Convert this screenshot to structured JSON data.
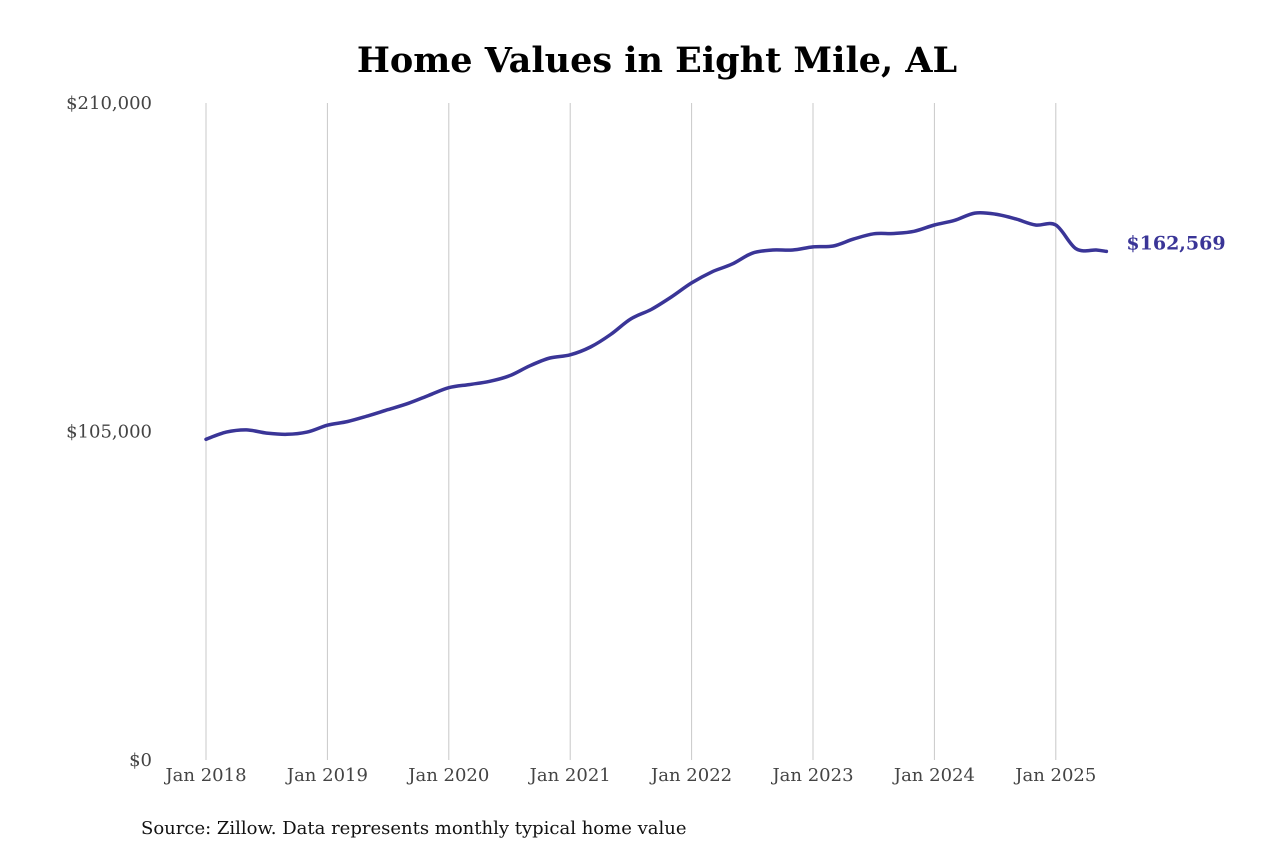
{
  "chart_data": {
    "type": "line",
    "title": "Home Values in Eight Mile, AL",
    "xlabel": "",
    "ylabel": "",
    "ylim": [
      0,
      210000
    ],
    "yticks": [
      {
        "value": 0,
        "label": "$0"
      },
      {
        "value": 105000,
        "label": "$105,000"
      },
      {
        "value": 210000,
        "label": "$210,000"
      }
    ],
    "xticks": [
      {
        "value": 2018.0,
        "label": "Jan 2018"
      },
      {
        "value": 2019.0,
        "label": "Jan 2019"
      },
      {
        "value": 2020.0,
        "label": "Jan 2020"
      },
      {
        "value": 2021.0,
        "label": "Jan 2021"
      },
      {
        "value": 2022.0,
        "label": "Jan 2022"
      },
      {
        "value": 2023.0,
        "label": "Jan 2023"
      },
      {
        "value": 2024.0,
        "label": "Jan 2024"
      },
      {
        "value": 2025.0,
        "label": "Jan 2025"
      }
    ],
    "xlim": [
      2018.0,
      2025.417
    ],
    "grid": "vertical",
    "line_color": "#3a3597",
    "end_label": "$162,569",
    "source": "Source: Zillow. Data represents monthly typical home value",
    "series": [
      {
        "x": [
          2018.0,
          2018.167,
          2018.333,
          2018.5,
          2018.667,
          2018.833,
          2019.0,
          2019.167,
          2019.333,
          2019.5,
          2019.667,
          2019.833,
          2020.0,
          2020.167,
          2020.333,
          2020.5,
          2020.667,
          2020.833,
          2021.0,
          2021.167,
          2021.333,
          2021.5,
          2021.667,
          2021.833,
          2022.0,
          2022.167,
          2022.333,
          2022.5,
          2022.667,
          2022.833,
          2023.0,
          2023.167,
          2023.333,
          2023.5,
          2023.667,
          2023.833,
          2024.0,
          2024.167,
          2024.333,
          2024.5,
          2024.667,
          2024.833,
          2025.0,
          2025.167,
          2025.333,
          2025.417
        ],
        "values": [
          102500,
          104800,
          105500,
          104500,
          104100,
          104800,
          107000,
          108200,
          110000,
          112000,
          114000,
          116500,
          119000,
          120000,
          121000,
          122800,
          126000,
          128500,
          129500,
          132000,
          136000,
          141000,
          144000,
          148000,
          152500,
          156000,
          158500,
          162000,
          163000,
          163000,
          164000,
          164300,
          166500,
          168200,
          168300,
          169000,
          171000,
          172500,
          174800,
          174500,
          173000,
          171000,
          171000,
          163400,
          163000,
          162569
        ]
      }
    ]
  }
}
